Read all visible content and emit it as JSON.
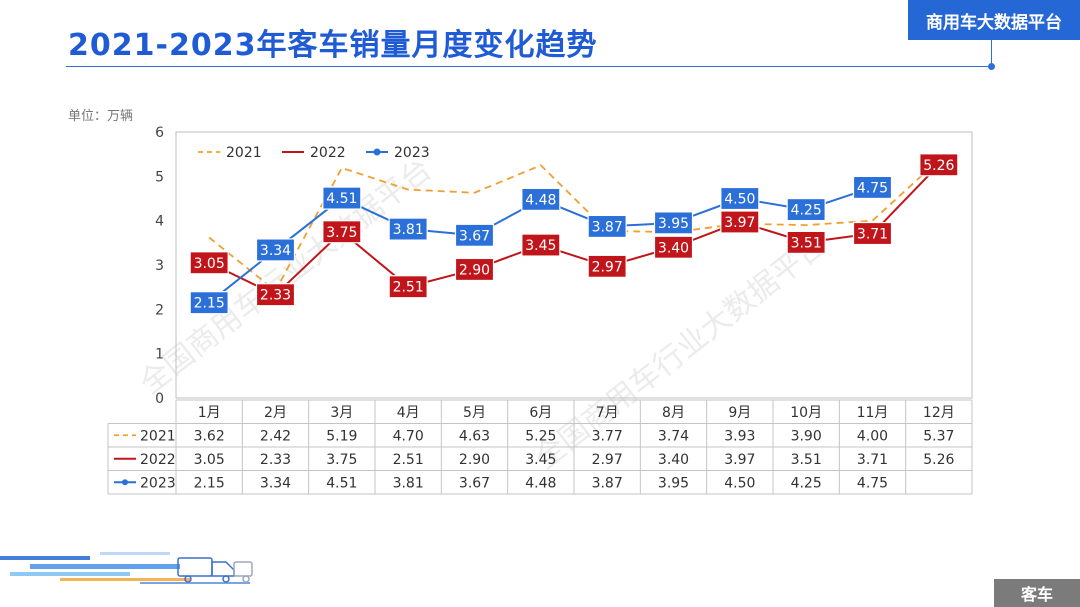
{
  "header": {
    "title": "2021-2023年客车销量月度变化趋势",
    "brand": "商用车大数据平台"
  },
  "unit_label": "单位：万辆",
  "watermark": "全国商用车行业大数据平台",
  "footer": {
    "category": "客车"
  },
  "colors": {
    "s2021": "#f0a030",
    "s2022": "#c0161b",
    "s2023": "#2b6fd8",
    "accent": "#2567d4"
  },
  "chart_data": {
    "type": "line",
    "categories": [
      "1月",
      "2月",
      "3月",
      "4月",
      "5月",
      "6月",
      "7月",
      "8月",
      "9月",
      "10月",
      "11月",
      "12月"
    ],
    "ylim": [
      0,
      6
    ],
    "yticks": [
      "0",
      "1",
      "2",
      "3",
      "4",
      "5",
      "6"
    ],
    "legend_position": "top-left",
    "grid": false,
    "series": [
      {
        "name": "2021",
        "style": "dashed",
        "color": "#f0a030",
        "values": [
          3.62,
          2.42,
          5.19,
          4.7,
          4.63,
          5.25,
          3.77,
          3.74,
          3.93,
          3.9,
          4.0,
          5.37
        ],
        "table": [
          "3.62",
          "2.42",
          "5.19",
          "4.70",
          "4.63",
          "5.25",
          "3.77",
          "3.74",
          "3.93",
          "3.90",
          "4.00",
          "5.37"
        ]
      },
      {
        "name": "2022",
        "style": "solid",
        "color": "#c0161b",
        "values": [
          3.05,
          2.33,
          3.75,
          2.51,
          2.9,
          3.45,
          2.97,
          3.4,
          3.97,
          3.51,
          3.71,
          5.26
        ],
        "table": [
          "3.05",
          "2.33",
          "3.75",
          "2.51",
          "2.90",
          "3.45",
          "2.97",
          "3.40",
          "3.97",
          "3.51",
          "3.71",
          "5.26"
        ]
      },
      {
        "name": "2023",
        "style": "solid-marker",
        "color": "#2b6fd8",
        "values": [
          2.15,
          3.34,
          4.51,
          3.81,
          3.67,
          4.48,
          3.87,
          3.95,
          4.5,
          4.25,
          4.75,
          null
        ],
        "table": [
          "2.15",
          "3.34",
          "4.51",
          "3.81",
          "3.67",
          "4.48",
          "3.87",
          "3.95",
          "4.50",
          "4.25",
          "4.75",
          ""
        ]
      }
    ]
  }
}
